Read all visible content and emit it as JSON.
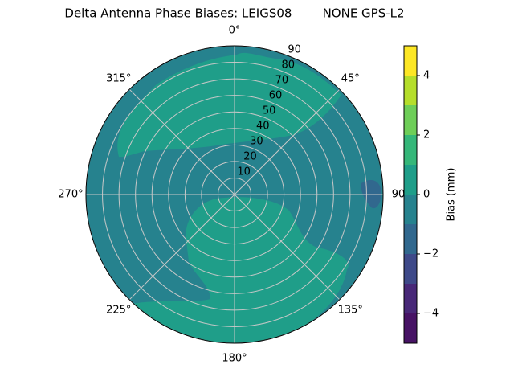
{
  "chart_data": {
    "type": "polar-contour",
    "title": "Delta Antenna Phase Biases: LEIGS08        NONE GPS-L2",
    "theta_ticks": [
      {
        "value": 0,
        "label": "0°"
      },
      {
        "value": 45,
        "label": "45°"
      },
      {
        "value": 90,
        "label": "90"
      },
      {
        "value": 135,
        "label": "135°"
      },
      {
        "value": 180,
        "label": "180°"
      },
      {
        "value": 225,
        "label": "225°"
      },
      {
        "value": 270,
        "label": "270°"
      },
      {
        "value": 315,
        "label": "315°"
      }
    ],
    "rlim": [
      0,
      90
    ],
    "rticks": [
      10,
      20,
      30,
      40,
      50,
      60,
      70,
      80,
      90
    ],
    "grid": true,
    "levels": [
      -5,
      -4,
      -3,
      -2,
      -1,
      0,
      1,
      2,
      3,
      4,
      5
    ],
    "colors": [
      "#471365",
      "#482878",
      "#3e4989",
      "#31688e",
      "#26828e",
      "#1f9e89",
      "#35b779",
      "#6ece58",
      "#b5de2b",
      "#fde725"
    ],
    "colorbar": {
      "label": "Bias (mm)",
      "ticks": [
        {
          "value": -4,
          "label": "−4"
        },
        {
          "value": -2,
          "label": "−2"
        },
        0,
        2,
        4
      ]
    }
  }
}
